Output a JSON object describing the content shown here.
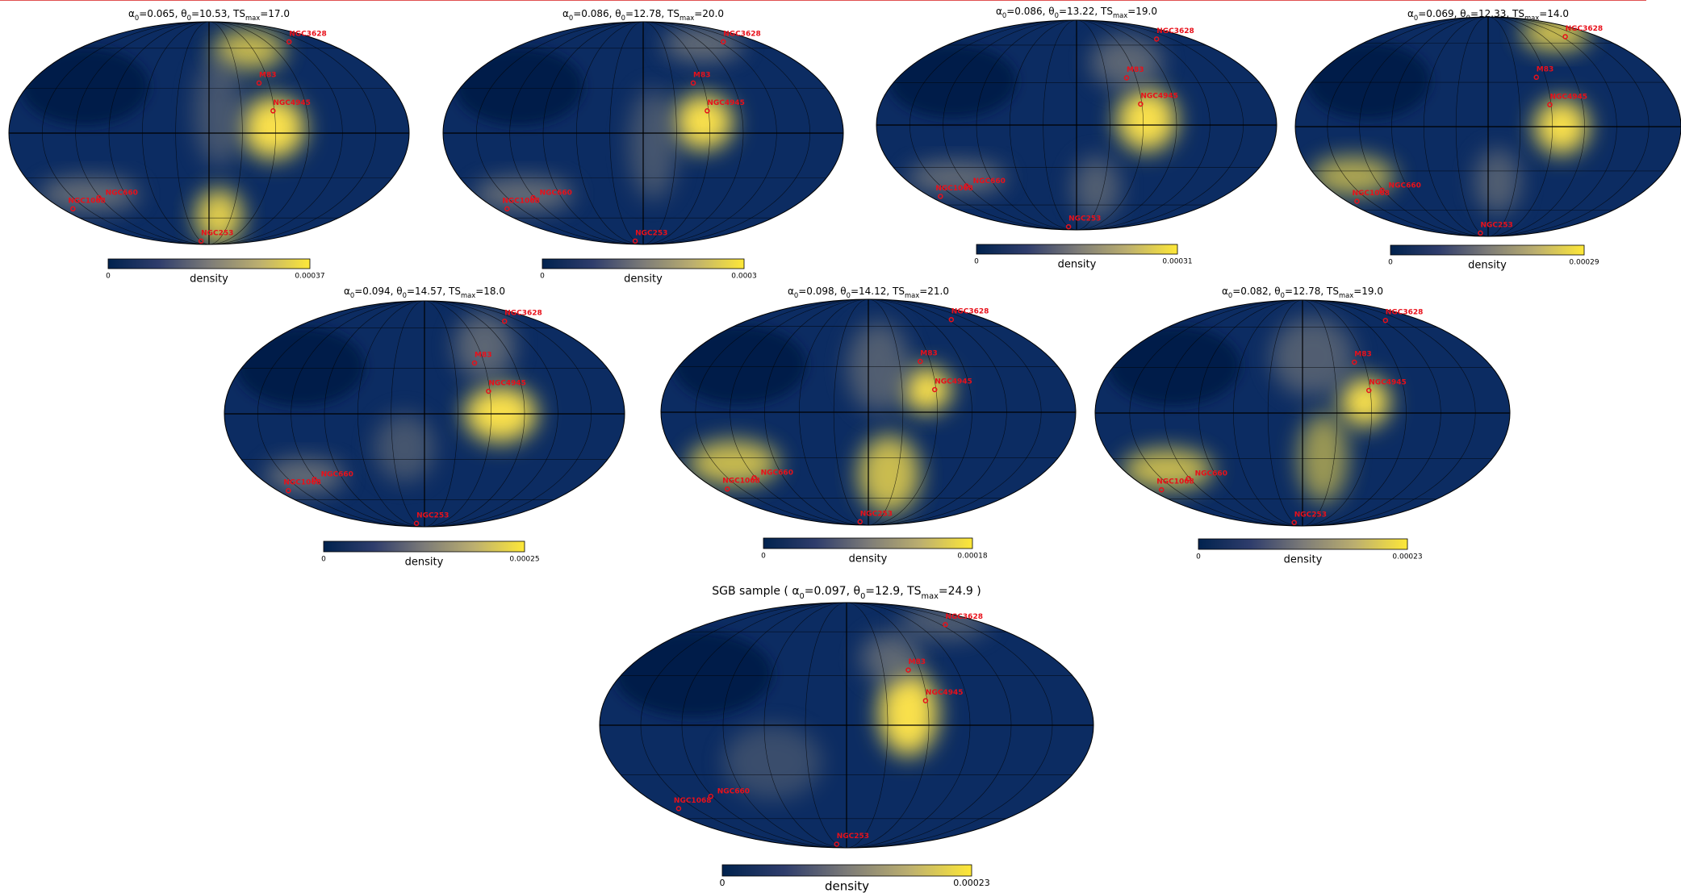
{
  "panels": [
    {
      "title": [
        {
          "t": "α"
        },
        {
          "t": "0",
          "sub": true
        },
        {
          "t": "=0.065, "
        },
        {
          "t": "θ"
        },
        {
          "t": "0",
          "sub": true
        },
        {
          "t": "=10.53, "
        },
        {
          "t": "TS"
        },
        {
          "t": "max",
          "sub": true
        },
        {
          "t": "=17.0"
        }
      ],
      "sources": [
        "NGC3628",
        "M83",
        "NGC4945",
        "NGC660",
        "NGC1068",
        "NGC253"
      ],
      "colorbar": {
        "label": "density",
        "ticks": [
          0,
          0.00037
        ]
      }
    },
    {
      "title": [
        {
          "t": "α"
        },
        {
          "t": "0",
          "sub": true
        },
        {
          "t": "=0.086, "
        },
        {
          "t": "θ"
        },
        {
          "t": "0",
          "sub": true
        },
        {
          "t": "=12.78, "
        },
        {
          "t": "TS"
        },
        {
          "t": "max",
          "sub": true
        },
        {
          "t": "=20.0"
        }
      ],
      "sources": [
        "NGC3628",
        "M83",
        "NGC4945",
        "NGC660",
        "NGC1068",
        "NGC253"
      ],
      "colorbar": {
        "label": "density",
        "ticks": [
          0,
          0.0003
        ]
      }
    },
    {
      "title": [
        {
          "t": "α"
        },
        {
          "t": "0",
          "sub": true
        },
        {
          "t": "=0.086, "
        },
        {
          "t": "θ"
        },
        {
          "t": "0",
          "sub": true
        },
        {
          "t": "=13.22, "
        },
        {
          "t": "TS"
        },
        {
          "t": "max",
          "sub": true
        },
        {
          "t": "=19.0"
        }
      ],
      "sources": [
        "NGC3628",
        "M83",
        "NGC4945",
        "NGC660",
        "NGC1068",
        "NGC253"
      ],
      "colorbar": {
        "label": "density",
        "ticks": [
          0,
          0.00031
        ]
      }
    },
    {
      "title": [
        {
          "t": "α"
        },
        {
          "t": "0",
          "sub": true
        },
        {
          "t": "=0.069, "
        },
        {
          "t": "θ"
        },
        {
          "t": "0",
          "sub": true
        },
        {
          "t": "=12.33, "
        },
        {
          "t": "TS"
        },
        {
          "t": "max",
          "sub": true
        },
        {
          "t": "=14.0"
        }
      ],
      "sources": [
        "NGC3628",
        "M83",
        "NGC4945",
        "NGC660",
        "NGC1068",
        "NGC253"
      ],
      "colorbar": {
        "label": "density",
        "ticks": [
          0,
          0.00029
        ]
      }
    },
    {
      "title": [
        {
          "t": "α"
        },
        {
          "t": "0",
          "sub": true
        },
        {
          "t": "=0.094, "
        },
        {
          "t": "θ"
        },
        {
          "t": "0",
          "sub": true
        },
        {
          "t": "=14.57, "
        },
        {
          "t": "TS"
        },
        {
          "t": "max",
          "sub": true
        },
        {
          "t": "=18.0"
        }
      ],
      "sources": [
        "NGC3628",
        "M83",
        "NGC4945",
        "NGC660",
        "NGC1068",
        "NGC253"
      ],
      "colorbar": {
        "label": "density",
        "ticks": [
          0,
          0.00025
        ]
      }
    },
    {
      "title": [
        {
          "t": "α"
        },
        {
          "t": "0",
          "sub": true
        },
        {
          "t": "=0.098, "
        },
        {
          "t": "θ"
        },
        {
          "t": "0",
          "sub": true
        },
        {
          "t": "=14.12, "
        },
        {
          "t": "TS"
        },
        {
          "t": "max",
          "sub": true
        },
        {
          "t": "=21.0"
        }
      ],
      "sources": [
        "NGC3628",
        "M83",
        "NGC4945",
        "NGC660",
        "NGC1068",
        "NGC253"
      ],
      "colorbar": {
        "label": "density",
        "ticks": [
          0,
          0.00018
        ]
      }
    },
    {
      "title": [
        {
          "t": "α"
        },
        {
          "t": "0",
          "sub": true
        },
        {
          "t": "=0.082, "
        },
        {
          "t": "θ"
        },
        {
          "t": "0",
          "sub": true
        },
        {
          "t": "=12.78, "
        },
        {
          "t": "TS"
        },
        {
          "t": "max",
          "sub": true
        },
        {
          "t": "=19.0"
        }
      ],
      "sources": [
        "NGC3628",
        "M83",
        "NGC4945",
        "NGC660",
        "NGC1068",
        "NGC253"
      ],
      "colorbar": {
        "label": "density",
        "ticks": [
          0,
          0.00023
        ]
      }
    },
    {
      "title": [
        {
          "t": "SGB sample ( α"
        },
        {
          "t": "0",
          "sub": true
        },
        {
          "t": "=0.097, θ"
        },
        {
          "t": "0",
          "sub": true
        },
        {
          "t": "=12.9, TS"
        },
        {
          "t": "max",
          "sub": true
        },
        {
          "t": "=24.9 )"
        }
      ],
      "sources": [
        "NGC3628",
        "M83",
        "NGC4945",
        "NGC660",
        "NGC1068",
        "NGC253"
      ],
      "colorbar": {
        "label": "density",
        "ticks": [
          0,
          0.00023
        ]
      }
    }
  ]
}
